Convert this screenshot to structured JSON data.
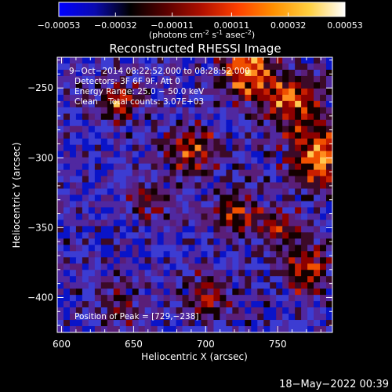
{
  "colors": {
    "background": "#000000",
    "foreground": "#ffffff",
    "colorbar_stops": [
      "#0000ff",
      "#0a0ab0",
      "#000000",
      "#5a0000",
      "#b01000",
      "#ff4000",
      "#ff9000",
      "#ffd040",
      "#ffffff"
    ],
    "image_palette": [
      "#0a14c8",
      "#3c3cd2",
      "#5028a0",
      "#5a1e78",
      "#3c0a28",
      "#140000",
      "#8c0000",
      "#c81e00",
      "#f05000",
      "#ff8c1e",
      "#ffc850"
    ]
  },
  "chart_data": [
    {
      "type": "colorbar",
      "ticks": [
        "-0.00053",
        "-0.00032",
        "-0.00011",
        "0.00011",
        "0.00032",
        "0.00053"
      ],
      "range": [
        -0.00053,
        0.00053
      ],
      "unit_label": {
        "prefix": "(photons cm",
        "exp1": "-2",
        "mid": " s",
        "exp2": "-1",
        "mid2": " asec",
        "exp3": "-2",
        "suffix": ")"
      }
    },
    {
      "type": "heatmap",
      "title": "Reconstructed RHESSI Image",
      "xlabel": "Heliocentric X (arcsec)",
      "ylabel": "Heliocentric Y (arcsec)",
      "xlim": [
        597,
        788
      ],
      "ylim": [
        -425,
        -228
      ],
      "xticks": [
        600,
        650,
        700,
        750
      ],
      "yticks": [
        -250,
        -300,
        -350,
        -400
      ],
      "xtick_labels": [
        "600",
        "650",
        "700",
        "750"
      ],
      "ytick_labels": [
        "−250",
        "−300",
        "−350",
        "−400"
      ],
      "annotations": [
        "9−Oct−2014 08:22:52.000 to 08:28:52.000",
        "Detectors: 3F 6F 9F, Att 0",
        "Energy Range: 25.0 − 50.0 keV",
        "Clean    Total counts: 3.07E+03"
      ],
      "peak_label": "Position of Peak = [729,−238]",
      "peak": [
        729,
        -238
      ]
    }
  ],
  "timestamp": "18−May−2022 00:39"
}
